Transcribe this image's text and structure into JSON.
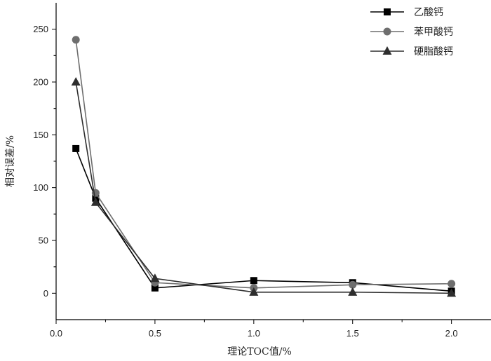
{
  "chart_data": {
    "type": "line",
    "title": "",
    "xlabel": "理论TOC值/%",
    "ylabel": "相对误差/%",
    "xlim": [
      0,
      2.2
    ],
    "ylim": [
      -25,
      275
    ],
    "x_ticks": [
      0.0,
      0.5,
      1.0,
      1.5,
      2.0
    ],
    "x_tick_labels": [
      "0.0",
      "0.5",
      "1.0",
      "1.5",
      "2.0"
    ],
    "y_ticks": [
      0,
      50,
      100,
      150,
      200,
      250
    ],
    "y_tick_labels": [
      "0",
      "50",
      "100",
      "150",
      "200",
      "250"
    ],
    "grid": false,
    "legend_position": "top-right",
    "x": [
      0.1,
      0.2,
      0.5,
      1.0,
      1.5,
      2.0
    ],
    "series": [
      {
        "name": "乙酸钙",
        "marker": "square",
        "color": "#000000",
        "values": [
          137,
          90,
          5,
          12,
          10,
          2
        ]
      },
      {
        "name": "苯甲酸钙",
        "marker": "circle",
        "color": "#6e6e6e",
        "values": [
          240,
          95,
          10,
          5,
          8,
          9
        ]
      },
      {
        "name": "硬脂酸钙",
        "marker": "triangle",
        "color": "#2e2e2e",
        "values": [
          200,
          86,
          14,
          1,
          1,
          0
        ]
      }
    ]
  }
}
